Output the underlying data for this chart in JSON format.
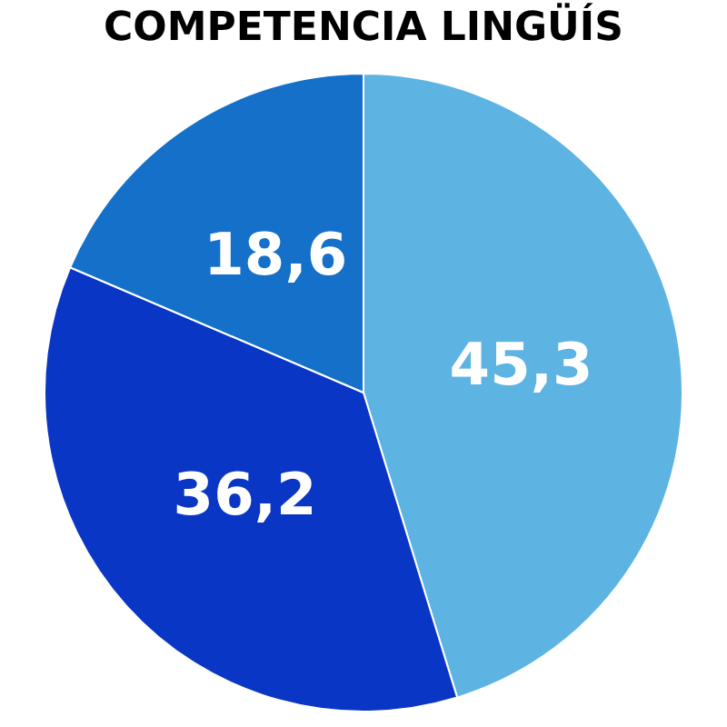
{
  "chart_data": {
    "type": "pie",
    "title": "COMPETENCIA LINGÜÍS",
    "categories": [
      null,
      null,
      null
    ],
    "values": [
      45.3,
      36.2,
      18.6
    ],
    "colors": [
      "#5db4e3",
      "#0a36c6",
      "#1470c8"
    ],
    "value_labels": [
      "45,3",
      "36,2",
      "18,6"
    ],
    "legend": false
  }
}
